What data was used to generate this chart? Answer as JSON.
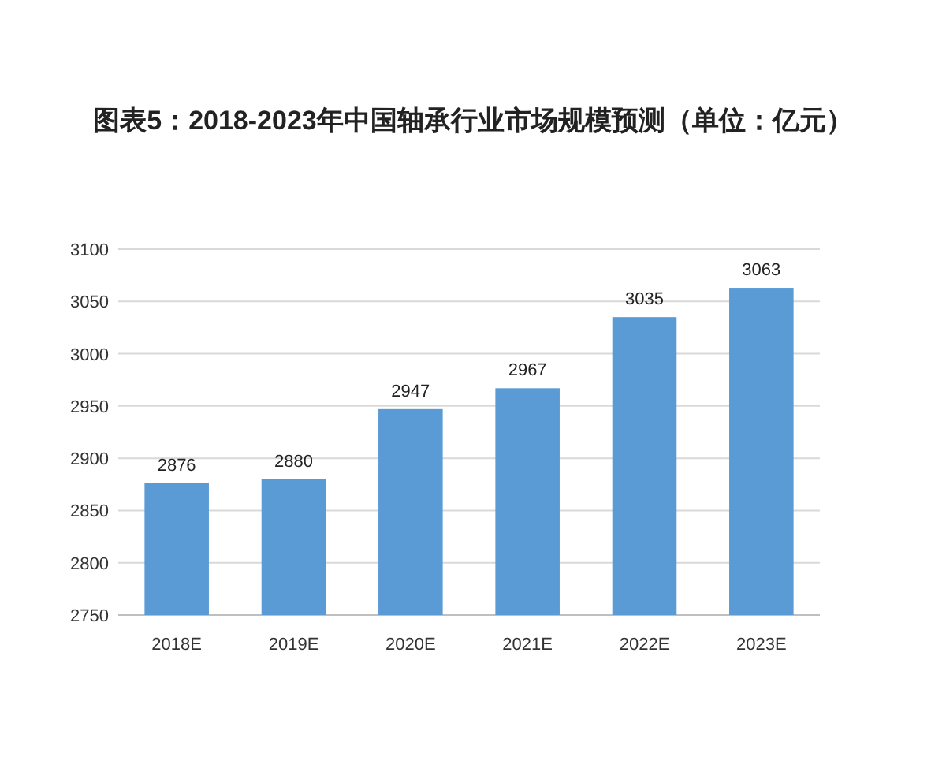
{
  "chart_data": {
    "type": "bar",
    "title": "图表5：2018-2023年中国轴承行业市场规模预测（单位：亿元）",
    "categories": [
      "2018E",
      "2019E",
      "2020E",
      "2021E",
      "2022E",
      "2023E"
    ],
    "values": [
      2876,
      2880,
      2947,
      2967,
      3035,
      3063
    ],
    "color": "#5b9bd5",
    "ylim": [
      2750,
      3100
    ],
    "yticks": [
      2750,
      2800,
      2850,
      2900,
      2950,
      3000,
      3050,
      3100
    ],
    "grid": "y",
    "data_labels": true
  }
}
